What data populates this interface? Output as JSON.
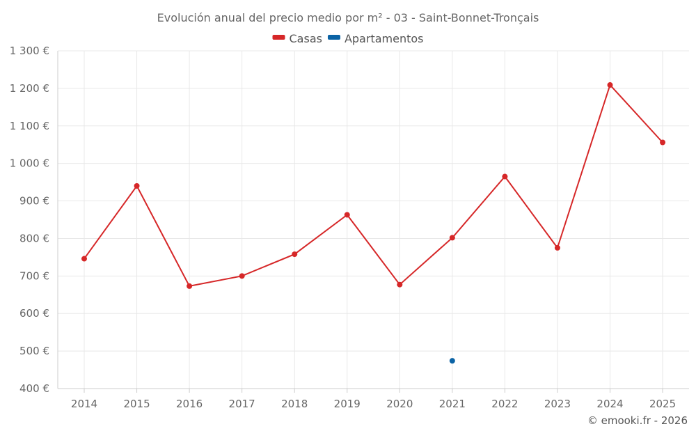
{
  "chart_data": {
    "type": "line",
    "title": "Evolución anual del precio medio por m² - 03 - Saint-Bonnet-Tronçais",
    "categories": [
      "2014",
      "2015",
      "2016",
      "2017",
      "2018",
      "2019",
      "2020",
      "2021",
      "2022",
      "2023",
      "2024",
      "2025"
    ],
    "series": [
      {
        "name": "Casas",
        "color": "#d62728",
        "values": [
          746,
          940,
          673,
          700,
          758,
          863,
          677,
          802,
          965,
          775,
          1209,
          1056
        ]
      },
      {
        "name": "Apartamentos",
        "color": "#0b63a5",
        "values": [
          null,
          null,
          null,
          null,
          null,
          null,
          null,
          474,
          null,
          null,
          null,
          null
        ]
      }
    ],
    "y_ticks": [
      400,
      500,
      600,
      700,
      800,
      900,
      1000,
      1100,
      1200,
      1300
    ],
    "y_tick_labels": [
      "400 €",
      "500 €",
      "600 €",
      "700 €",
      "800 €",
      "900 €",
      "1 000 €",
      "1 100 €",
      "1 200 €",
      "1 300 €"
    ],
    "ylim": [
      400,
      1300
    ],
    "xlabel": "",
    "ylabel": "",
    "grid": true,
    "legend_position": "top-center"
  },
  "credit": "© emooki.fr - 2026"
}
